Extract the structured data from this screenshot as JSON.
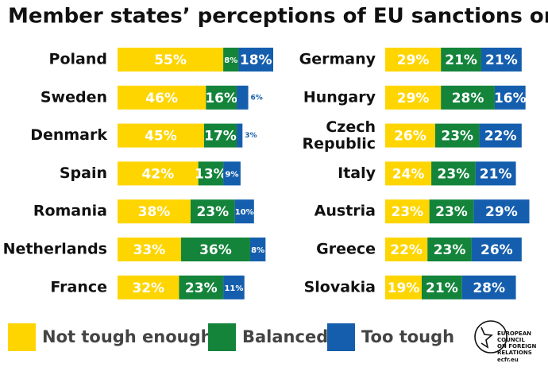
{
  "chart_data": {
    "type": "bar",
    "orientation": "horizontal",
    "stacked": true,
    "title": "Member states’ perceptions of EU sanctions on Russia",
    "categories": [
      "Poland",
      "Sweden",
      "Denmark",
      "Spain",
      "Romania",
      "Netherlands",
      "France",
      "Germany",
      "Hungary",
      "Czech Republic",
      "Italy",
      "Austria",
      "Greece",
      "Slovakia"
    ],
    "series": [
      {
        "name": "Not tough enough",
        "color": "#ffd500",
        "values": [
          55,
          46,
          45,
          42,
          38,
          33,
          32,
          29,
          29,
          26,
          24,
          23,
          22,
          19
        ],
        "value_labels": [
          "55%",
          "46%",
          "45%",
          "42%",
          "38%",
          "33%",
          "32%",
          "29%",
          "29%",
          "26%",
          "24%",
          "23%",
          "22%",
          "19%"
        ]
      },
      {
        "name": "Balanced",
        "color": "#14843b",
        "values": [
          8,
          16,
          17,
          13,
          23,
          36,
          23,
          21,
          28,
          23,
          23,
          23,
          23,
          21
        ],
        "value_labels": [
          "8%",
          "16%",
          "17%",
          "13%",
          "23%",
          "36%",
          "23%",
          "21%",
          "28%",
          "23%",
          "23%",
          "23%",
          "23%",
          "21%"
        ]
      },
      {
        "name": "Too tough",
        "color": "#155eae",
        "values": [
          18,
          6,
          3,
          9,
          10,
          8,
          11,
          21,
          16,
          22,
          21,
          29,
          26,
          28
        ],
        "value_labels": [
          "18%",
          "6%",
          "3%",
          "9%",
          "10%",
          "8%",
          "11%",
          "21%",
          "16%",
          "22%",
          "21%",
          "29%",
          "26%",
          "28%"
        ]
      }
    ],
    "logo": [
      "EUROPEAN",
      "COUNCIL",
      "ON FOREIGN",
      "RELATIONS"
    ],
    "url": "ecfr.eu"
  }
}
